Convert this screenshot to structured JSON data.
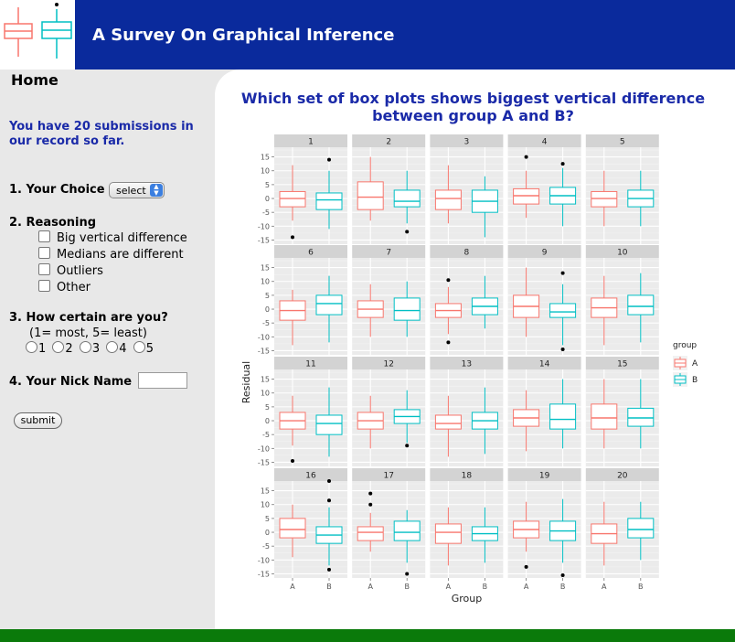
{
  "header": {
    "title": "A Survey On Graphical Inference",
    "colors": {
      "bar": "#0a2a9c",
      "footer": "#0a7a0a",
      "accent_text": "#1a2aa8"
    }
  },
  "sidebar": {
    "home": "Home",
    "submissions_text": "You have 20 submissions in our record so far.",
    "q1": {
      "label": "1. Your Choice",
      "select_value": "select"
    },
    "q2": {
      "label": "2. Reasoning",
      "options": [
        "Big vertical difference",
        "Medians are different",
        "Outliers",
        "Other"
      ]
    },
    "q3": {
      "label": "3. How certain are you?",
      "scale_note": "(1= most, 5= least)",
      "options": [
        "1",
        "2",
        "3",
        "4",
        "5"
      ]
    },
    "q4": {
      "label": "4. Your Nick Name",
      "value": ""
    },
    "submit_label": "submit"
  },
  "main": {
    "question": "Which set of box plots shows biggest vertical difference between group A and B?"
  },
  "chart_data": {
    "type": "boxplot",
    "xlabel": "Group",
    "ylabel": "Residual",
    "categories": [
      "A",
      "B"
    ],
    "yticks": [
      15,
      10,
      5,
      0,
      -5,
      -10,
      -15
    ],
    "ylim": [
      -16.5,
      18.5
    ],
    "legend": {
      "title": "group",
      "entries": [
        "A",
        "B"
      ],
      "placement": "right",
      "colors": [
        "#f8766d",
        "#00bfc4"
      ]
    },
    "grid": true,
    "panels": [
      {
        "label": "1",
        "A": {
          "lo": -8,
          "q1": -3,
          "med": 0,
          "q3": 2.5,
          "hi": 12,
          "outliers": [
            -14
          ]
        },
        "B": {
          "lo": -11,
          "q1": -4,
          "med": -0.5,
          "q3": 2,
          "hi": 10,
          "outliers": [
            14
          ]
        }
      },
      {
        "label": "2",
        "A": {
          "lo": -8,
          "q1": -4,
          "med": 0.5,
          "q3": 6,
          "hi": 15,
          "outliers": []
        },
        "B": {
          "lo": -9,
          "q1": -3,
          "med": -1,
          "q3": 3,
          "hi": 10,
          "outliers": [
            -12
          ]
        }
      },
      {
        "label": "3",
        "A": {
          "lo": -9,
          "q1": -4,
          "med": 0,
          "q3": 3,
          "hi": 12,
          "outliers": []
        },
        "B": {
          "lo": -14,
          "q1": -5,
          "med": -1,
          "q3": 3,
          "hi": 8,
          "outliers": []
        }
      },
      {
        "label": "4",
        "A": {
          "lo": -7,
          "q1": -2,
          "med": 1,
          "q3": 3.5,
          "hi": 10,
          "outliers": [
            15
          ]
        },
        "B": {
          "lo": -10,
          "q1": -2,
          "med": 1,
          "q3": 4,
          "hi": 11,
          "outliers": [
            12.5
          ]
        }
      },
      {
        "label": "5",
        "A": {
          "lo": -10,
          "q1": -3,
          "med": 0,
          "q3": 2.5,
          "hi": 10,
          "outliers": []
        },
        "B": {
          "lo": -10,
          "q1": -3,
          "med": 0,
          "q3": 3,
          "hi": 10,
          "outliers": []
        }
      },
      {
        "label": "6",
        "A": {
          "lo": -13,
          "q1": -4,
          "med": -0.5,
          "q3": 3,
          "hi": 7,
          "outliers": []
        },
        "B": {
          "lo": -12,
          "q1": -2,
          "med": 2,
          "q3": 5,
          "hi": 12,
          "outliers": []
        }
      },
      {
        "label": "7",
        "A": {
          "lo": -10,
          "q1": -3,
          "med": 0,
          "q3": 3,
          "hi": 9,
          "outliers": []
        },
        "B": {
          "lo": -10,
          "q1": -4,
          "med": -0.5,
          "q3": 4,
          "hi": 10,
          "outliers": []
        }
      },
      {
        "label": "8",
        "A": {
          "lo": -9,
          "q1": -3,
          "med": -0.5,
          "q3": 2,
          "hi": 8,
          "outliers": [
            10.5,
            -12
          ]
        },
        "B": {
          "lo": -7,
          "q1": -2,
          "med": 1,
          "q3": 4,
          "hi": 12,
          "outliers": []
        }
      },
      {
        "label": "9",
        "A": {
          "lo": -10,
          "q1": -3,
          "med": 1,
          "q3": 5,
          "hi": 15,
          "outliers": []
        },
        "B": {
          "lo": -13,
          "q1": -3,
          "med": -1,
          "q3": 2,
          "hi": 9,
          "outliers": [
            13,
            -14.5
          ]
        }
      },
      {
        "label": "10",
        "A": {
          "lo": -13,
          "q1": -3,
          "med": 0.5,
          "q3": 4,
          "hi": 12,
          "outliers": []
        },
        "B": {
          "lo": -12,
          "q1": -2,
          "med": 1,
          "q3": 5,
          "hi": 13,
          "outliers": []
        }
      },
      {
        "label": "11",
        "A": {
          "lo": -9,
          "q1": -3,
          "med": 0,
          "q3": 3,
          "hi": 9,
          "outliers": [
            -14.5
          ]
        },
        "B": {
          "lo": -13,
          "q1": -5,
          "med": -1,
          "q3": 2,
          "hi": 12,
          "outliers": []
        }
      },
      {
        "label": "12",
        "A": {
          "lo": -10,
          "q1": -3,
          "med": 0,
          "q3": 3,
          "hi": 9,
          "outliers": []
        },
        "B": {
          "lo": -8,
          "q1": -1,
          "med": 1.5,
          "q3": 4,
          "hi": 11,
          "outliers": [
            -9
          ]
        }
      },
      {
        "label": "13",
        "A": {
          "lo": -13,
          "q1": -3,
          "med": -1,
          "q3": 2,
          "hi": 9,
          "outliers": []
        },
        "B": {
          "lo": -12,
          "q1": -3,
          "med": 0,
          "q3": 3,
          "hi": 12,
          "outliers": []
        }
      },
      {
        "label": "14",
        "A": {
          "lo": -11,
          "q1": -2,
          "med": 1,
          "q3": 4,
          "hi": 11,
          "outliers": []
        },
        "B": {
          "lo": -10,
          "q1": -3,
          "med": 0.5,
          "q3": 6,
          "hi": 15,
          "outliers": []
        }
      },
      {
        "label": "15",
        "A": {
          "lo": -10,
          "q1": -3,
          "med": 1,
          "q3": 6,
          "hi": 15,
          "outliers": []
        },
        "B": {
          "lo": -10,
          "q1": -2,
          "med": 1,
          "q3": 4.5,
          "hi": 15,
          "outliers": []
        }
      },
      {
        "label": "16",
        "A": {
          "lo": -9,
          "q1": -2,
          "med": 1,
          "q3": 5,
          "hi": 10,
          "outliers": []
        },
        "B": {
          "lo": -12,
          "q1": -4,
          "med": -1,
          "q3": 2,
          "hi": 9,
          "outliers": [
            18.5,
            11.5,
            -13.5
          ]
        }
      },
      {
        "label": "17",
        "A": {
          "lo": -7,
          "q1": -3,
          "med": 0,
          "q3": 2,
          "hi": 7,
          "outliers": [
            14,
            10
          ]
        },
        "B": {
          "lo": -11,
          "q1": -3,
          "med": 0,
          "q3": 4,
          "hi": 8,
          "outliers": [
            -15
          ]
        }
      },
      {
        "label": "18",
        "A": {
          "lo": -12,
          "q1": -4,
          "med": 0,
          "q3": 3,
          "hi": 9,
          "outliers": []
        },
        "B": {
          "lo": -11,
          "q1": -3,
          "med": -0.5,
          "q3": 2,
          "hi": 9,
          "outliers": []
        }
      },
      {
        "label": "19",
        "A": {
          "lo": -7,
          "q1": -2,
          "med": 1,
          "q3": 4,
          "hi": 11,
          "outliers": [
            -12.5
          ]
        },
        "B": {
          "lo": -11,
          "q1": -3,
          "med": 0.5,
          "q3": 4,
          "hi": 12,
          "outliers": [
            -15.5
          ]
        }
      },
      {
        "label": "20",
        "A": {
          "lo": -12,
          "q1": -4,
          "med": -0.5,
          "q3": 3,
          "hi": 11,
          "outliers": []
        },
        "B": {
          "lo": -10,
          "q1": -2,
          "med": 1,
          "q3": 5,
          "hi": 11,
          "outliers": []
        }
      }
    ]
  }
}
